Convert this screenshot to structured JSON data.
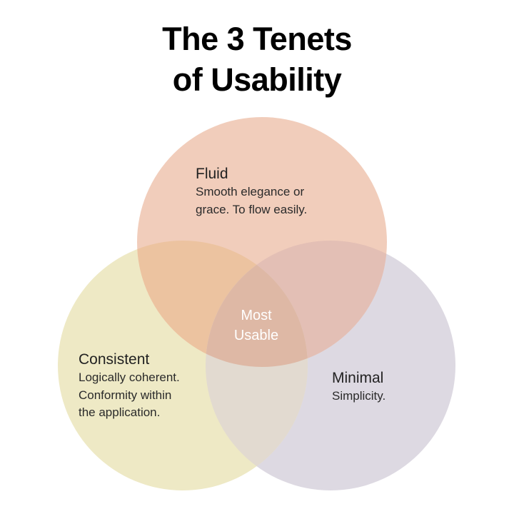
{
  "title": {
    "line1": "The 3 Tenets",
    "line2": "of Usability"
  },
  "colors": {
    "fluid": "#f1cdbb",
    "consistent": "#eee9c5",
    "minimal": "#ddd9e2",
    "fluid_consistent_overlap": "#ecc3a0",
    "fluid_minimal_overlap": "#e3bfb5",
    "consistent_minimal_overlap": "#e2dad0",
    "center_overlap": "#deb8a5",
    "title": "#000000",
    "center_text": "#ffffff"
  },
  "sets": [
    {
      "id": "fluid",
      "name": "Fluid",
      "description_lines": [
        "Smooth elegance or",
        "grace. To flow easily."
      ]
    },
    {
      "id": "consistent",
      "name": "Consistent",
      "description_lines": [
        "Logically coherent.",
        "Conformity within",
        "the application."
      ]
    },
    {
      "id": "minimal",
      "name": "Minimal",
      "description_lines": [
        "Simplicity."
      ]
    }
  ],
  "center": {
    "line1": "Most",
    "line2": "Usable"
  }
}
